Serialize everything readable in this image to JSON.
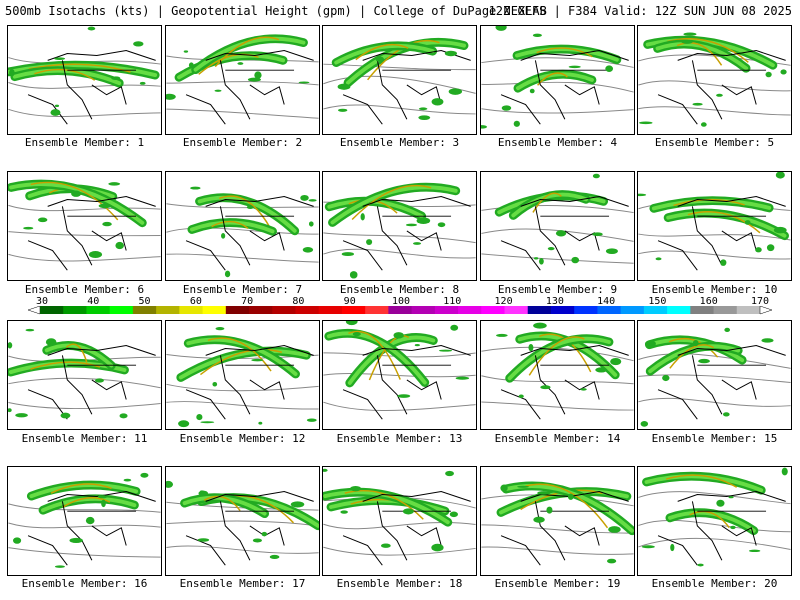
{
  "header": {
    "left": "500mb Isotachs (kts) | Geopotential Height (gpm) | College of DuPage NEXLAB",
    "right": "12Z GEFS | F384 Valid: 12Z SUN JUN 08 2025"
  },
  "members": [
    {
      "caption": "Ensemble Member: 1"
    },
    {
      "caption": "Ensemble Member: 2"
    },
    {
      "caption": "Ensemble Member: 3"
    },
    {
      "caption": "Ensemble Member: 4"
    },
    {
      "caption": "Ensemble Member: 5"
    },
    {
      "caption": "Ensemble Member: 6"
    },
    {
      "caption": "Ensemble Member: 7"
    },
    {
      "caption": "Ensemble Member: 8"
    },
    {
      "caption": "Ensemble Member: 9"
    },
    {
      "caption": "Ensemble Member: 10"
    },
    {
      "caption": "Ensemble Member: 11"
    },
    {
      "caption": "Ensemble Member: 12"
    },
    {
      "caption": "Ensemble Member: 13"
    },
    {
      "caption": "Ensemble Member: 14"
    },
    {
      "caption": "Ensemble Member: 15"
    },
    {
      "caption": "Ensemble Member: 16"
    },
    {
      "caption": "Ensemble Member: 17"
    },
    {
      "caption": "Ensemble Member: 18"
    },
    {
      "caption": "Ensemble Member: 19"
    },
    {
      "caption": "Ensemble Member: 20"
    }
  ],
  "colorbar": {
    "labels": [
      "30",
      "40",
      "50",
      "60",
      "70",
      "80",
      "90",
      "100",
      "110",
      "120",
      "130",
      "140",
      "150",
      "160",
      "170"
    ],
    "colors": [
      "#006400",
      "#009900",
      "#00cc00",
      "#00ff00",
      "#808000",
      "#b3b300",
      "#e6e600",
      "#ffff00",
      "#800000",
      "#990000",
      "#b30000",
      "#cc0000",
      "#e60000",
      "#ff0000",
      "#ff3333",
      "#990099",
      "#b300b3",
      "#cc00cc",
      "#e600e6",
      "#ff00ff",
      "#ff33ff",
      "#000099",
      "#0000cc",
      "#0033ff",
      "#0066ff",
      "#0099ff",
      "#00ccff",
      "#00ffff",
      "#808080",
      "#999999",
      "#bfbfbf"
    ]
  },
  "palette": {
    "jet_light": "#22aa22",
    "jet_mid": "#66dd44",
    "jet_core": "#c8a000",
    "jet_max": "#aa0000",
    "height_contour": "#888888",
    "coast": "#000000"
  }
}
